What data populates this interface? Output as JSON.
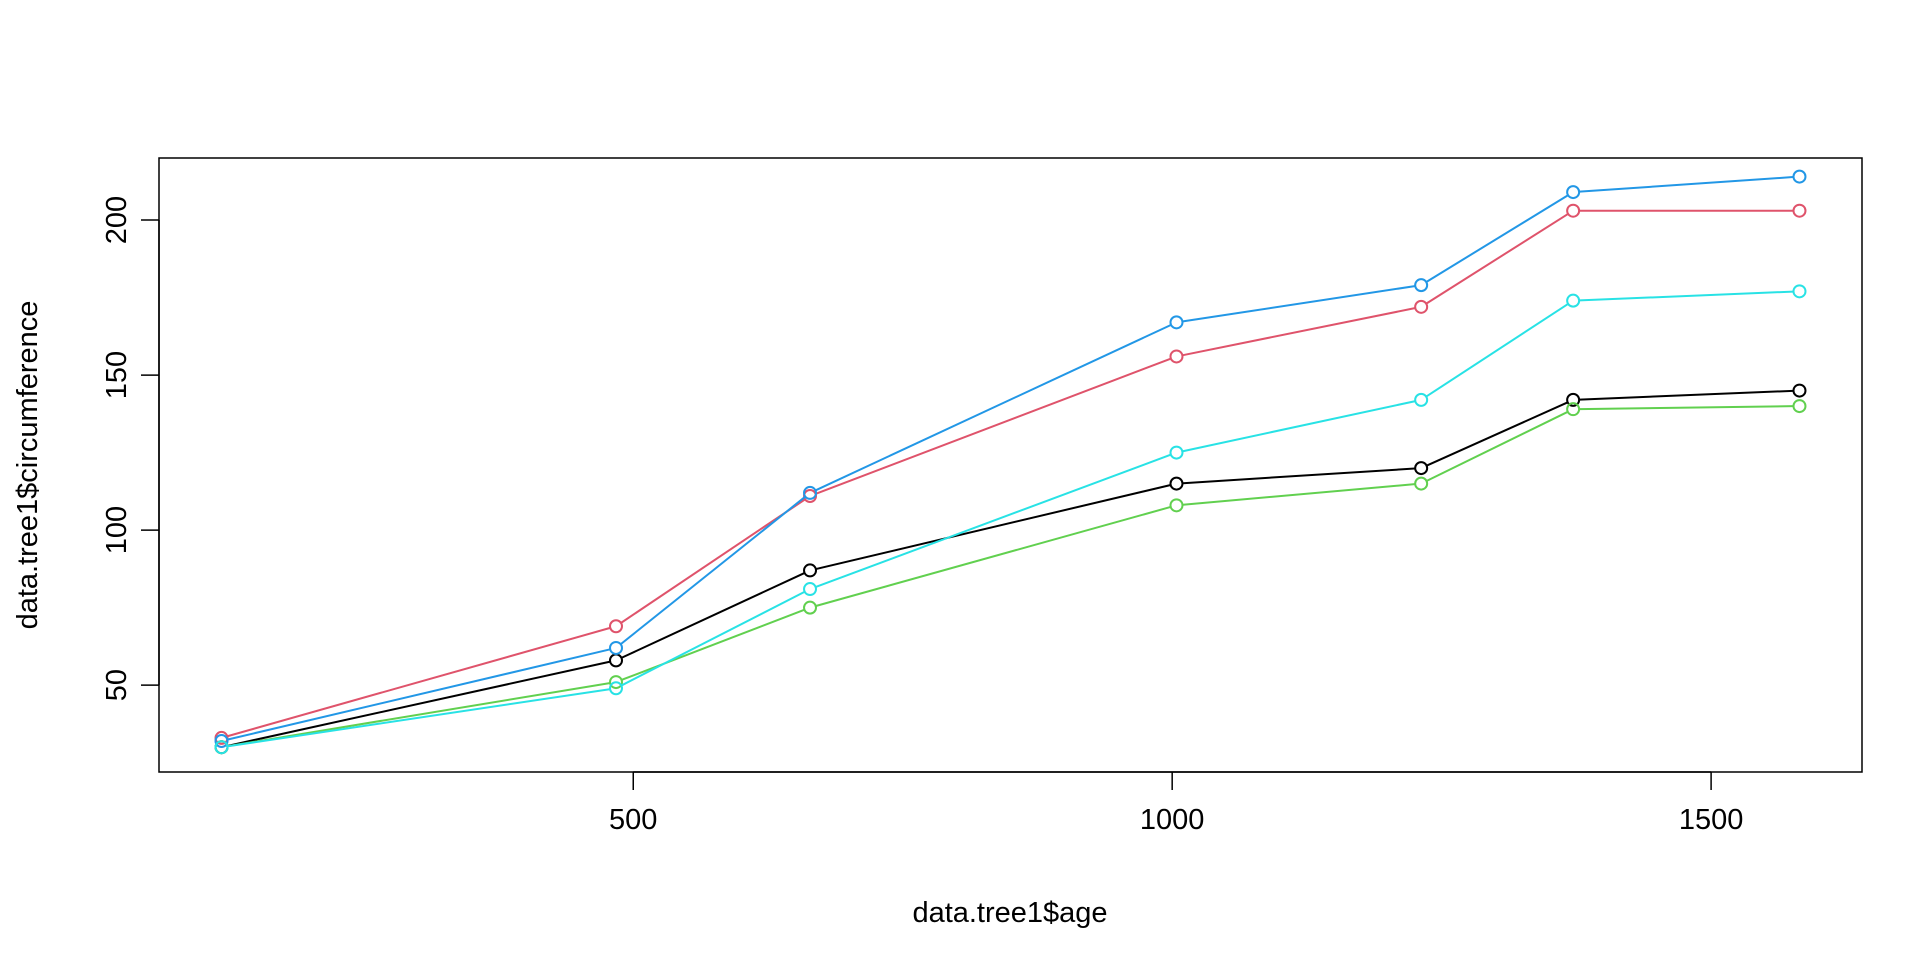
{
  "chart_data": {
    "type": "line",
    "title": "",
    "xlabel": "data.tree1$age",
    "ylabel": "data.tree1$circumference",
    "x": [
      118,
      484,
      664,
      1004,
      1231,
      1372,
      1582
    ],
    "xlim": [
      60,
      1640
    ],
    "ylim": [
      22,
      220
    ],
    "x_ticks": [
      500,
      1000,
      1500
    ],
    "y_ticks": [
      50,
      100,
      150,
      200
    ],
    "grid": false,
    "marker": "open-circle",
    "series": [
      {
        "color": "#000000",
        "values": [
          30,
          58,
          87,
          115,
          120,
          142,
          145
        ]
      },
      {
        "color": "#DF536B",
        "values": [
          33,
          69,
          111,
          156,
          172,
          203,
          203
        ]
      },
      {
        "color": "#61D04F",
        "values": [
          30,
          51,
          75,
          108,
          115,
          139,
          140
        ]
      },
      {
        "color": "#2297E6",
        "values": [
          32,
          62,
          112,
          167,
          179,
          209,
          214
        ]
      },
      {
        "color": "#28E2E5",
        "values": [
          30,
          49,
          81,
          125,
          142,
          174,
          177
        ]
      }
    ]
  }
}
